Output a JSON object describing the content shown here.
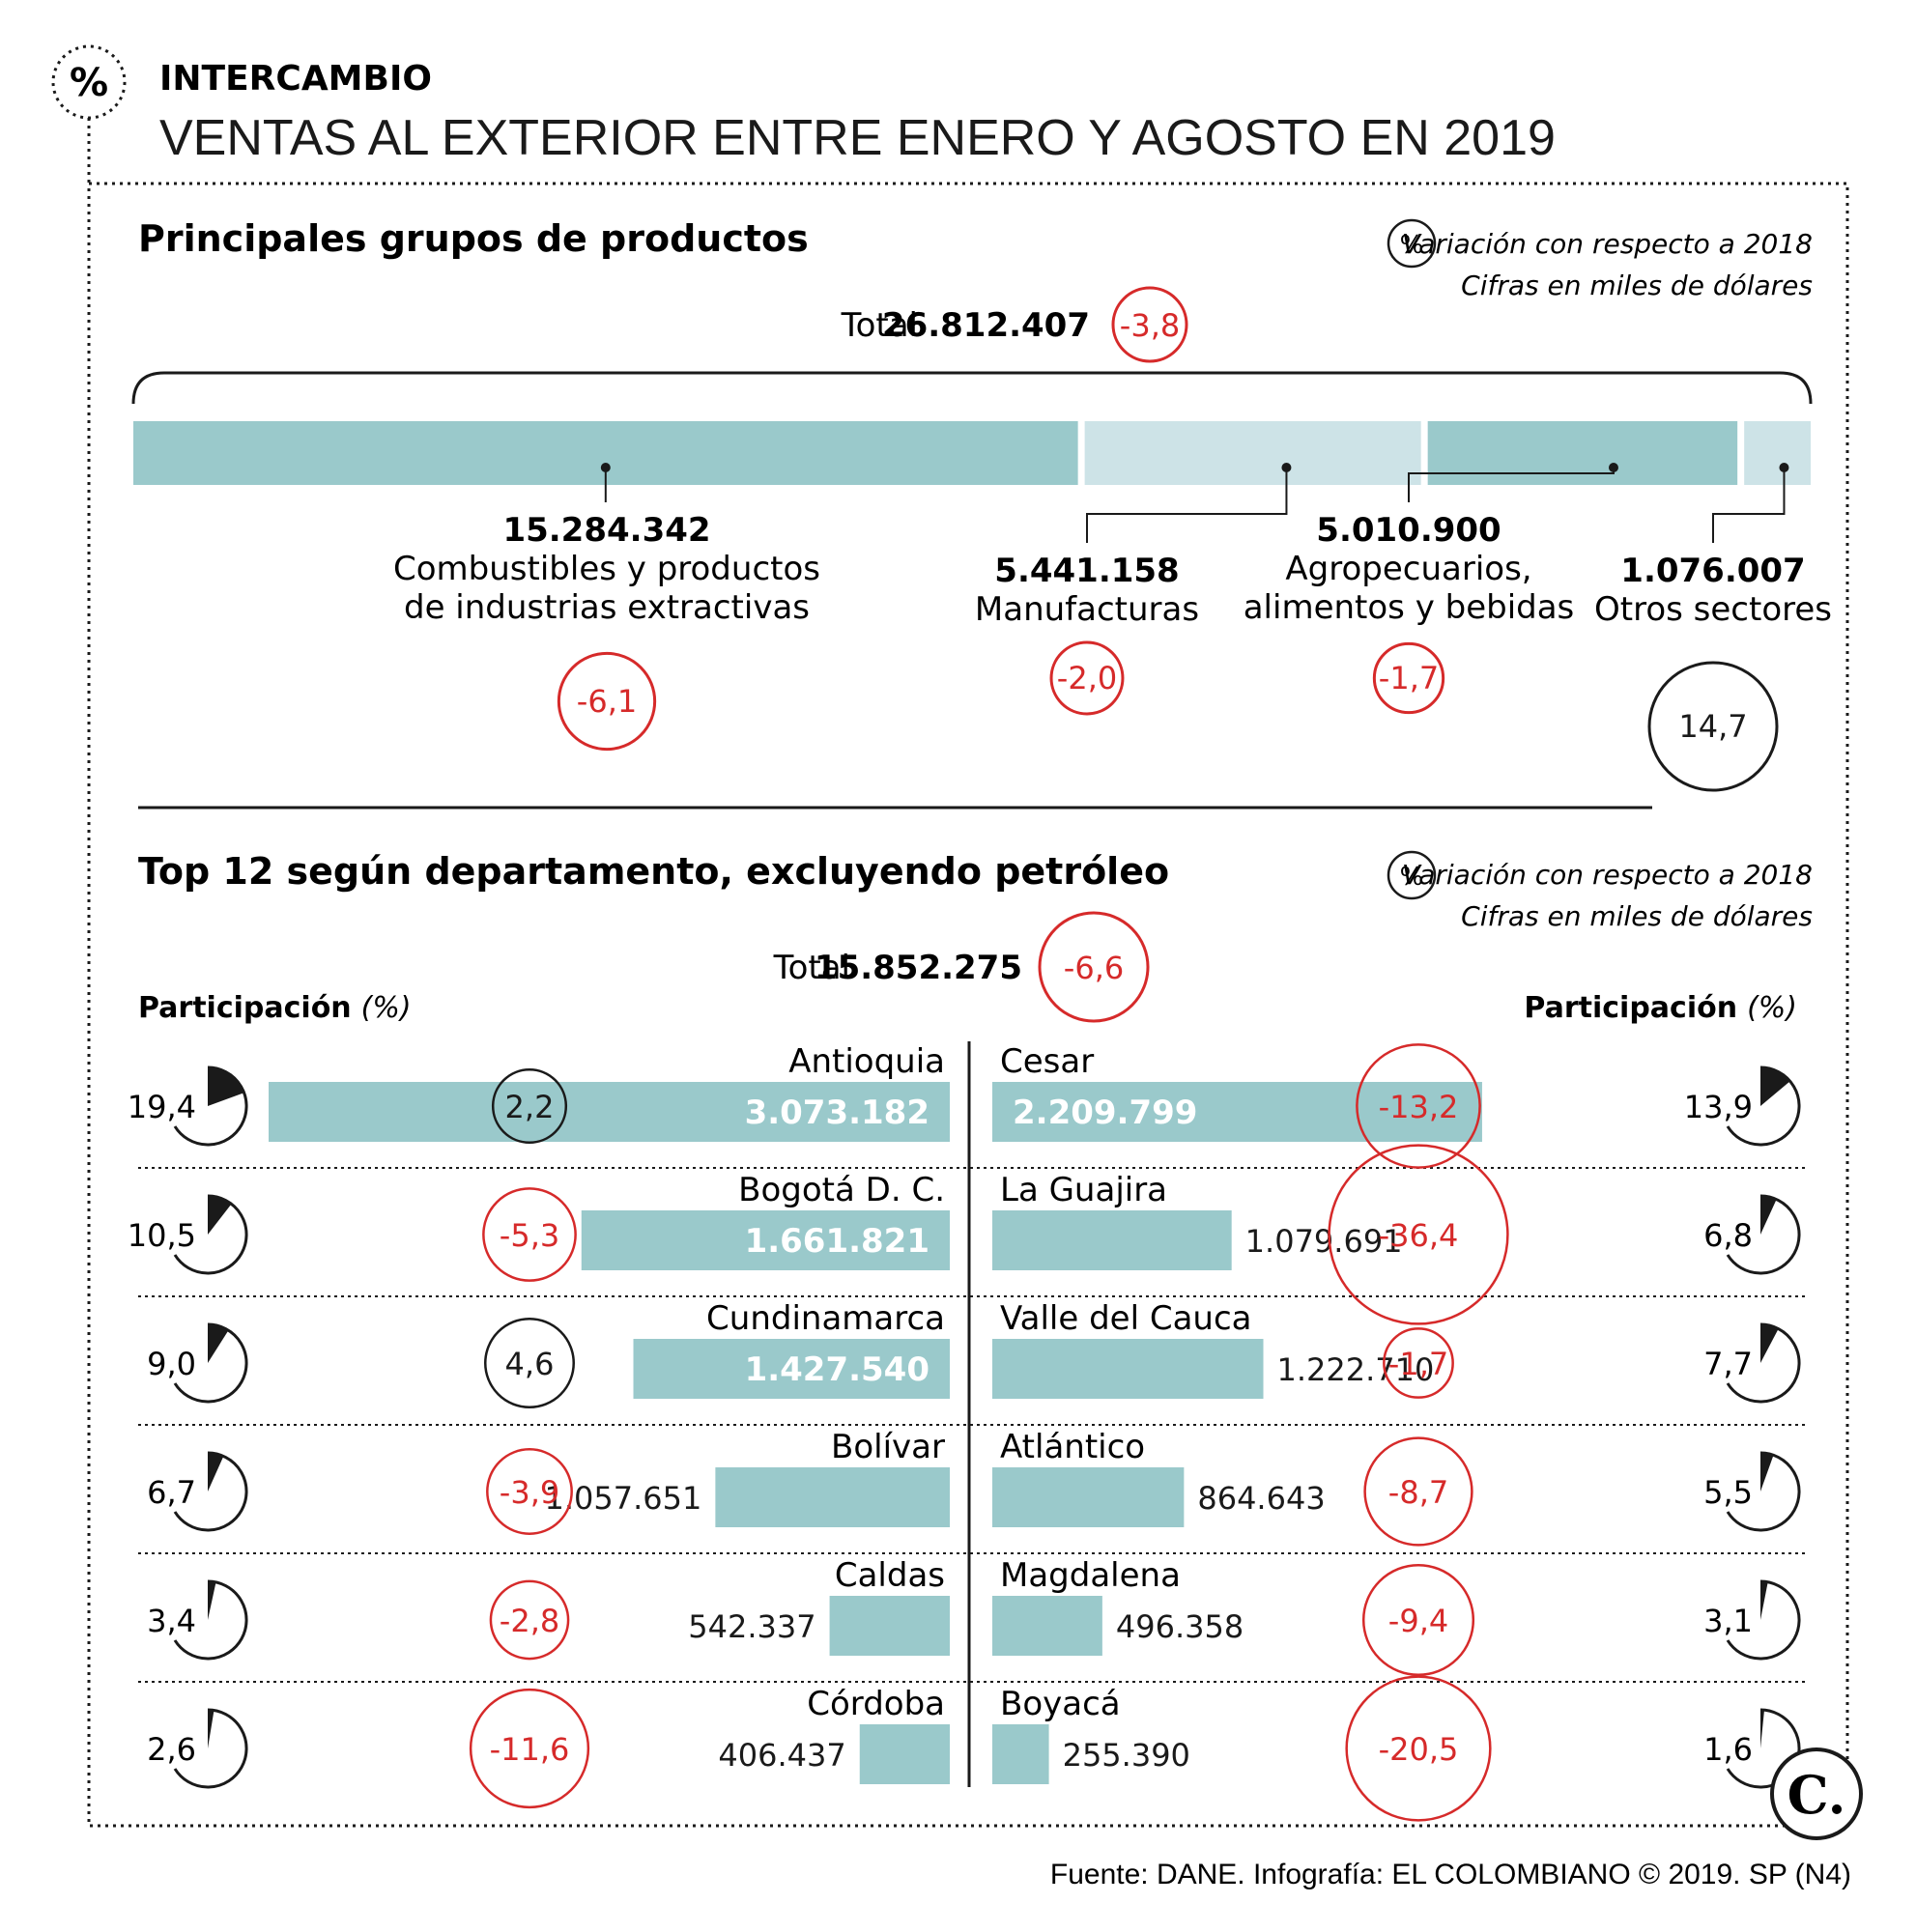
{
  "header": {
    "kicker": "INTERCAMBIO",
    "title": "VENTAS AL EXTERIOR ENTRE ENERO Y AGOSTO EN 2019",
    "percent_symbol": "%"
  },
  "colors": {
    "bar_dark": "#9ac9cb",
    "bar_light": "#cde3e7",
    "negative": "#d62a2a",
    "positive": "#1a1a1a"
  },
  "section_products": {
    "heading": "Principales grupos de productos",
    "legend_symbol": "%",
    "legend_line1": "Variación con respecto a 2018",
    "legend_line2": "Cifras en miles de dólares",
    "total_label": "Total",
    "total_value": "26.812.407",
    "total_change": "-3,8"
  },
  "section_departments": {
    "heading": "Top 12 según departamento, excluyendo petróleo",
    "legend_symbol": "%",
    "legend_line1": "Variación con respecto a 2018",
    "legend_line2": "Cifras en miles de dólares",
    "total_label": "Total",
    "total_value": "15.852.275",
    "total_change": "-6,6",
    "share_label": "Participación",
    "share_unit": "(%)"
  },
  "chart_data": [
    {
      "type": "bar",
      "subtype": "stacked-horizontal",
      "title": "Principales grupos de productos",
      "categories": [
        "Combustibles y productos de industrias extractivas",
        "Manufacturas",
        "Agropecuarios, alimentos y bebidas",
        "Otros sectores"
      ],
      "values": [
        15284342,
        5441158,
        5010900,
        1076007
      ],
      "value_labels": [
        "15.284.342",
        "5.441.158",
        "5.010.900",
        "1.076.007"
      ],
      "label_lines": [
        [
          "Combustibles y productos",
          "de industrias extractivas"
        ],
        [
          "Manufacturas"
        ],
        [
          "Agropecuarios,",
          "alimentos y bebidas"
        ],
        [
          "Otros sectores"
        ]
      ],
      "change_pct": [
        -6.1,
        -2.0,
        -1.7,
        14.7
      ],
      "change_labels": [
        "-6,1",
        "-2,0",
        "-1,7",
        "14,7"
      ],
      "segment_shades": [
        "dark",
        "light",
        "dark",
        "light"
      ]
    },
    {
      "type": "bar",
      "subtype": "horizontal-butterfly",
      "title": "Top 12 según departamento, excluyendo petróleo",
      "max_value": 3073182,
      "left": [
        {
          "name": "Antioquia",
          "value": 3073182,
          "value_label": "3.073.182",
          "share": 19.4,
          "share_label": "19,4",
          "change": 2.2,
          "change_label": "2,2"
        },
        {
          "name": "Bogotá D. C.",
          "value": 1661821,
          "value_label": "1.661.821",
          "share": 10.5,
          "share_label": "10,5",
          "change": -5.3,
          "change_label": "-5,3"
        },
        {
          "name": "Cundinamarca",
          "value": 1427540,
          "value_label": "1.427.540",
          "share": 9.0,
          "share_label": "9,0",
          "change": 4.6,
          "change_label": "4,6"
        },
        {
          "name": "Bolívar",
          "value": 1057651,
          "value_label": "1.057.651",
          "share": 6.7,
          "share_label": "6,7",
          "change": -3.9,
          "change_label": "-3,9"
        },
        {
          "name": "Caldas",
          "value": 542337,
          "value_label": "542.337",
          "share": 3.4,
          "share_label": "3,4",
          "change": -2.8,
          "change_label": "-2,8"
        },
        {
          "name": "Córdoba",
          "value": 406437,
          "value_label": "406.437",
          "share": 2.6,
          "share_label": "2,6",
          "change": -11.6,
          "change_label": "-11,6"
        }
      ],
      "right": [
        {
          "name": "Cesar",
          "value": 2209799,
          "value_label": "2.209.799",
          "share": 13.9,
          "share_label": "13,9",
          "change": -13.2,
          "change_label": "-13,2"
        },
        {
          "name": "La Guajira",
          "value": 1079691,
          "value_label": "1.079.691",
          "share": 6.8,
          "share_label": "6,8",
          "change": -36.4,
          "change_label": "-36,4"
        },
        {
          "name": "Valle del Cauca",
          "value": 1222710,
          "value_label": "1.222.710",
          "share": 7.7,
          "share_label": "7,7",
          "change": -1.7,
          "change_label": "-1,7"
        },
        {
          "name": "Atlántico",
          "value": 864643,
          "value_label": "864.643",
          "share": 5.5,
          "share_label": "5,5",
          "change": -8.7,
          "change_label": "-8,7"
        },
        {
          "name": "Magdalena",
          "value": 496358,
          "value_label": "496.358",
          "share": 3.1,
          "share_label": "3,1",
          "change": -9.4,
          "change_label": "-9,4"
        },
        {
          "name": "Boyacá",
          "value": 255390,
          "value_label": "255.390",
          "share": 1.6,
          "share_label": "1,6",
          "change": -20.5,
          "change_label": "-20,5"
        }
      ]
    }
  ],
  "footer": {
    "source": "Fuente: DANE. Infografía: EL COLOMBIANO © 2019. SP (N4)",
    "logo_letter": "C."
  }
}
